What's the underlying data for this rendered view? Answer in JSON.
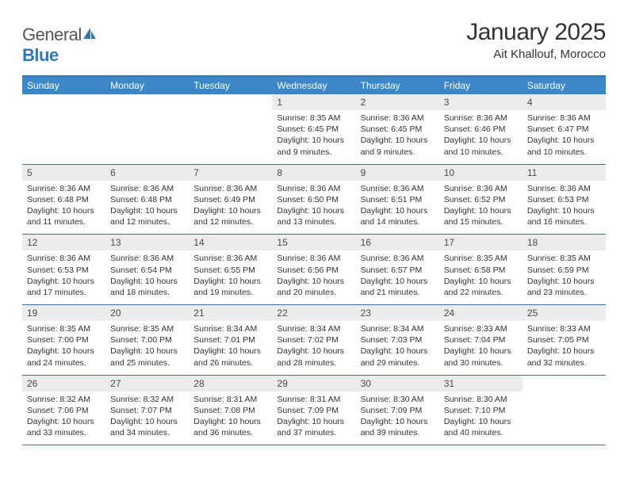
{
  "logo": {
    "text1": "General",
    "text2": "Blue"
  },
  "title": "January 2025",
  "location": "Ait Khallouf, Morocco",
  "colors": {
    "header_bg": "#3b87c8",
    "header_border": "#2f77bb",
    "daynum_bg": "#ececec",
    "text": "#333333",
    "logo_gray": "#6a6a6a",
    "logo_blue": "#2f77bb"
  },
  "weekdays": [
    "Sunday",
    "Monday",
    "Tuesday",
    "Wednesday",
    "Thursday",
    "Friday",
    "Saturday"
  ],
  "weeks": [
    [
      {
        "n": "",
        "sr": "",
        "ss": "",
        "dl": ""
      },
      {
        "n": "",
        "sr": "",
        "ss": "",
        "dl": ""
      },
      {
        "n": "",
        "sr": "",
        "ss": "",
        "dl": ""
      },
      {
        "n": "1",
        "sr": "Sunrise: 8:35 AM",
        "ss": "Sunset: 6:45 PM",
        "dl": "Daylight: 10 hours and 9 minutes."
      },
      {
        "n": "2",
        "sr": "Sunrise: 8:36 AM",
        "ss": "Sunset: 6:45 PM",
        "dl": "Daylight: 10 hours and 9 minutes."
      },
      {
        "n": "3",
        "sr": "Sunrise: 8:36 AM",
        "ss": "Sunset: 6:46 PM",
        "dl": "Daylight: 10 hours and 10 minutes."
      },
      {
        "n": "4",
        "sr": "Sunrise: 8:36 AM",
        "ss": "Sunset: 6:47 PM",
        "dl": "Daylight: 10 hours and 10 minutes."
      }
    ],
    [
      {
        "n": "5",
        "sr": "Sunrise: 8:36 AM",
        "ss": "Sunset: 6:48 PM",
        "dl": "Daylight: 10 hours and 11 minutes."
      },
      {
        "n": "6",
        "sr": "Sunrise: 8:36 AM",
        "ss": "Sunset: 6:48 PM",
        "dl": "Daylight: 10 hours and 12 minutes."
      },
      {
        "n": "7",
        "sr": "Sunrise: 8:36 AM",
        "ss": "Sunset: 6:49 PM",
        "dl": "Daylight: 10 hours and 12 minutes."
      },
      {
        "n": "8",
        "sr": "Sunrise: 8:36 AM",
        "ss": "Sunset: 6:50 PM",
        "dl": "Daylight: 10 hours and 13 minutes."
      },
      {
        "n": "9",
        "sr": "Sunrise: 8:36 AM",
        "ss": "Sunset: 6:51 PM",
        "dl": "Daylight: 10 hours and 14 minutes."
      },
      {
        "n": "10",
        "sr": "Sunrise: 8:36 AM",
        "ss": "Sunset: 6:52 PM",
        "dl": "Daylight: 10 hours and 15 minutes."
      },
      {
        "n": "11",
        "sr": "Sunrise: 8:36 AM",
        "ss": "Sunset: 6:53 PM",
        "dl": "Daylight: 10 hours and 16 minutes."
      }
    ],
    [
      {
        "n": "12",
        "sr": "Sunrise: 8:36 AM",
        "ss": "Sunset: 6:53 PM",
        "dl": "Daylight: 10 hours and 17 minutes."
      },
      {
        "n": "13",
        "sr": "Sunrise: 8:36 AM",
        "ss": "Sunset: 6:54 PM",
        "dl": "Daylight: 10 hours and 18 minutes."
      },
      {
        "n": "14",
        "sr": "Sunrise: 8:36 AM",
        "ss": "Sunset: 6:55 PM",
        "dl": "Daylight: 10 hours and 19 minutes."
      },
      {
        "n": "15",
        "sr": "Sunrise: 8:36 AM",
        "ss": "Sunset: 6:56 PM",
        "dl": "Daylight: 10 hours and 20 minutes."
      },
      {
        "n": "16",
        "sr": "Sunrise: 8:36 AM",
        "ss": "Sunset: 6:57 PM",
        "dl": "Daylight: 10 hours and 21 minutes."
      },
      {
        "n": "17",
        "sr": "Sunrise: 8:35 AM",
        "ss": "Sunset: 6:58 PM",
        "dl": "Daylight: 10 hours and 22 minutes."
      },
      {
        "n": "18",
        "sr": "Sunrise: 8:35 AM",
        "ss": "Sunset: 6:59 PM",
        "dl": "Daylight: 10 hours and 23 minutes."
      }
    ],
    [
      {
        "n": "19",
        "sr": "Sunrise: 8:35 AM",
        "ss": "Sunset: 7:00 PM",
        "dl": "Daylight: 10 hours and 24 minutes."
      },
      {
        "n": "20",
        "sr": "Sunrise: 8:35 AM",
        "ss": "Sunset: 7:00 PM",
        "dl": "Daylight: 10 hours and 25 minutes."
      },
      {
        "n": "21",
        "sr": "Sunrise: 8:34 AM",
        "ss": "Sunset: 7:01 PM",
        "dl": "Daylight: 10 hours and 26 minutes."
      },
      {
        "n": "22",
        "sr": "Sunrise: 8:34 AM",
        "ss": "Sunset: 7:02 PM",
        "dl": "Daylight: 10 hours and 28 minutes."
      },
      {
        "n": "23",
        "sr": "Sunrise: 8:34 AM",
        "ss": "Sunset: 7:03 PM",
        "dl": "Daylight: 10 hours and 29 minutes."
      },
      {
        "n": "24",
        "sr": "Sunrise: 8:33 AM",
        "ss": "Sunset: 7:04 PM",
        "dl": "Daylight: 10 hours and 30 minutes."
      },
      {
        "n": "25",
        "sr": "Sunrise: 8:33 AM",
        "ss": "Sunset: 7:05 PM",
        "dl": "Daylight: 10 hours and 32 minutes."
      }
    ],
    [
      {
        "n": "26",
        "sr": "Sunrise: 8:32 AM",
        "ss": "Sunset: 7:06 PM",
        "dl": "Daylight: 10 hours and 33 minutes."
      },
      {
        "n": "27",
        "sr": "Sunrise: 8:32 AM",
        "ss": "Sunset: 7:07 PM",
        "dl": "Daylight: 10 hours and 34 minutes."
      },
      {
        "n": "28",
        "sr": "Sunrise: 8:31 AM",
        "ss": "Sunset: 7:08 PM",
        "dl": "Daylight: 10 hours and 36 minutes."
      },
      {
        "n": "29",
        "sr": "Sunrise: 8:31 AM",
        "ss": "Sunset: 7:09 PM",
        "dl": "Daylight: 10 hours and 37 minutes."
      },
      {
        "n": "30",
        "sr": "Sunrise: 8:30 AM",
        "ss": "Sunset: 7:09 PM",
        "dl": "Daylight: 10 hours and 39 minutes."
      },
      {
        "n": "31",
        "sr": "Sunrise: 8:30 AM",
        "ss": "Sunset: 7:10 PM",
        "dl": "Daylight: 10 hours and 40 minutes."
      },
      {
        "n": "",
        "sr": "",
        "ss": "",
        "dl": ""
      }
    ]
  ]
}
